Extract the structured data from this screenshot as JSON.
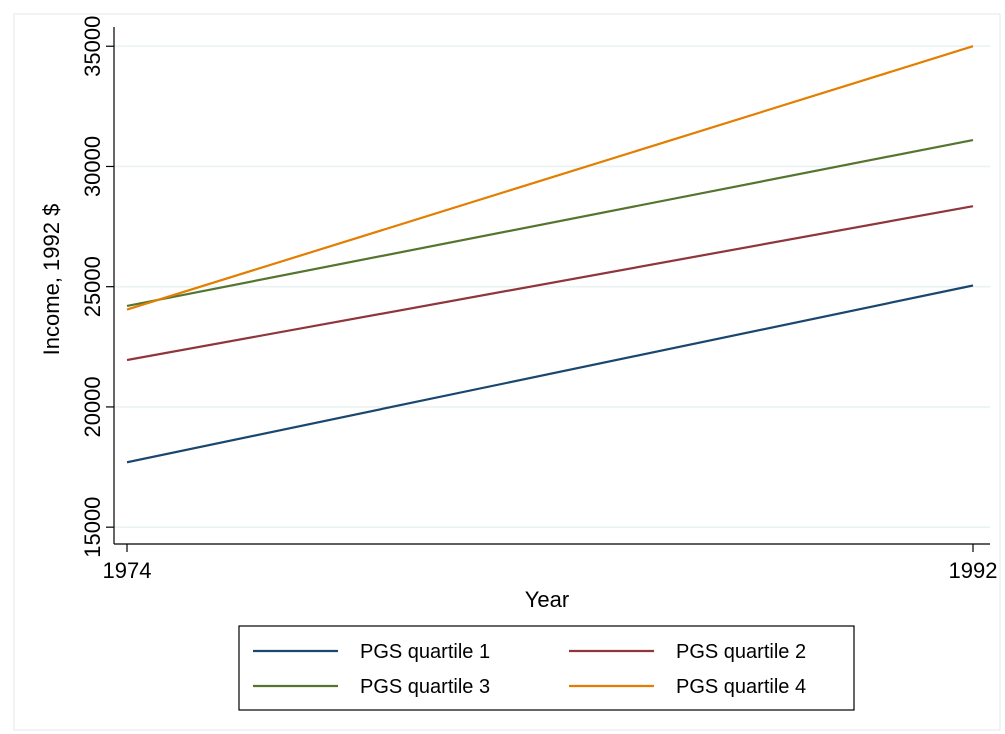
{
  "chart_data": {
    "type": "line",
    "title": "",
    "xlabel": "Year",
    "ylabel": "Income, 1992 $",
    "x_ticks": [
      1974,
      1992
    ],
    "y_ticks": [
      15000,
      20000,
      25000,
      30000,
      35000
    ],
    "xlim": [
      1974,
      1992
    ],
    "ylim": [
      14300,
      35800
    ],
    "grid": "horizontal",
    "legend_position": "bottom",
    "series": [
      {
        "name": "PGS quartile 1",
        "color": "#1a476f",
        "x": [
          1974,
          1992
        ],
        "y": [
          17700,
          25050
        ]
      },
      {
        "name": "PGS quartile 2",
        "color": "#90353b",
        "x": [
          1974,
          1992
        ],
        "y": [
          21950,
          28350
        ]
      },
      {
        "name": "PGS quartile 3",
        "color": "#55752f",
        "x": [
          1974,
          1992
        ],
        "y": [
          24200,
          31100
        ]
      },
      {
        "name": "PGS quartile 4",
        "color": "#e37e00",
        "x": [
          1974,
          1992
        ],
        "y": [
          24050,
          35000
        ]
      }
    ]
  }
}
